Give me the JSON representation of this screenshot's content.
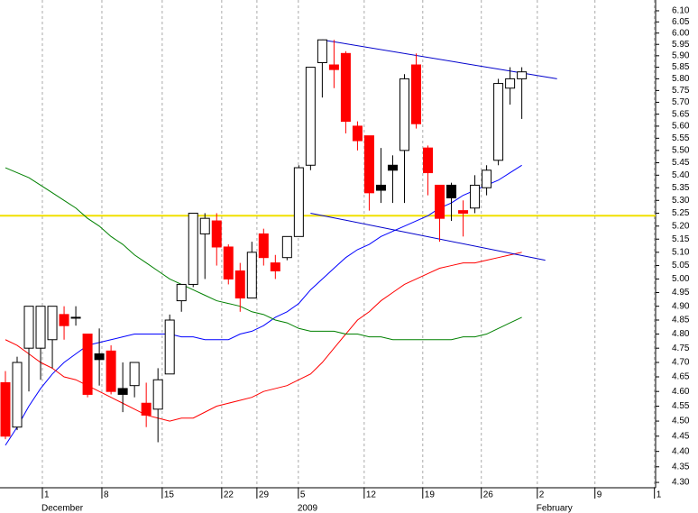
{
  "chart_data": {
    "type": "candlestick",
    "ylog": true,
    "ylim": [
      4.283,
      6.149
    ],
    "xlim": [
      -0.46,
      55.4
    ],
    "grid": true,
    "yticks": [
      {
        "value": 6.1,
        "label": "6.10"
      },
      6.05,
      {
        "value": 6.0,
        "label": "6.00"
      },
      5.95,
      {
        "value": 5.9,
        "label": "5.90"
      },
      5.85,
      {
        "value": 5.8,
        "label": "5.80"
      },
      5.75,
      {
        "value": 5.7,
        "label": "5.70"
      },
      5.65,
      {
        "value": 5.6,
        "label": "5.60"
      },
      5.55,
      {
        "value": 5.5,
        "label": "5.50"
      },
      5.45,
      {
        "value": 5.4,
        "label": "5.40"
      },
      5.35,
      {
        "value": 5.3,
        "label": "5.30"
      },
      5.25,
      {
        "value": 5.2,
        "label": "5.20"
      },
      5.15,
      {
        "value": 5.1,
        "label": "5.10"
      },
      5.05,
      {
        "value": 5.0,
        "label": "5.00"
      },
      4.95,
      {
        "value": 4.9,
        "label": "4.90"
      },
      4.85,
      {
        "value": 4.8,
        "label": "4.80"
      },
      4.75,
      {
        "value": 4.7,
        "label": "4.70"
      },
      4.65,
      {
        "value": 4.6,
        "label": "4.60"
      },
      4.55,
      {
        "value": 4.5,
        "label": "4.50"
      },
      4.45,
      {
        "value": 4.4,
        "label": "4.40"
      },
      4.35,
      {
        "value": 4.3,
        "label": "4.30"
      }
    ],
    "xticks": [
      {
        "value": 3.15,
        "label": "1"
      },
      {
        "value": 8.22,
        "label": "8"
      },
      {
        "value": 13.36,
        "label": "15"
      },
      {
        "value": 18.43,
        "label": "22"
      },
      {
        "value": 21.43,
        "label": "29"
      },
      {
        "value": 24.96,
        "label": "5"
      },
      {
        "value": 30.57,
        "label": "12"
      },
      {
        "value": 35.56,
        "label": "19"
      },
      {
        "value": 40.55,
        "label": "26"
      },
      {
        "value": 45.32,
        "label": "2"
      },
      {
        "value": 50.23,
        "label": "9"
      },
      {
        "value": 55.3,
        "label": "1"
      }
    ],
    "month_labels": [
      {
        "value": 3.15,
        "label": "December"
      },
      {
        "value": 24.96,
        "label": "2009"
      },
      {
        "value": 45.32,
        "label": "February"
      }
    ],
    "x": [
      0,
      1,
      2,
      3,
      4,
      5,
      6,
      7,
      8,
      9,
      10,
      11,
      12,
      13,
      14,
      15,
      16,
      17,
      18,
      19,
      20,
      21,
      22,
      23,
      24,
      25,
      26,
      27,
      28,
      29,
      30,
      31,
      32,
      33,
      34,
      35,
      36,
      37,
      38,
      39,
      40,
      41,
      42,
      43,
      44
    ],
    "open": [
      4.63,
      4.48,
      4.75,
      4.75,
      4.78,
      4.87,
      4.86,
      4.8,
      4.73,
      4.74,
      4.61,
      4.62,
      4.56,
      4.54,
      4.66,
      4.92,
      4.98,
      5.17,
      5.22,
      5.12,
      5.03,
      4.93,
      5.17,
      5.06,
      5.08,
      5.16,
      5.44,
      5.87,
      5.86,
      5.91,
      5.6,
      5.56,
      5.36,
      5.44,
      5.5,
      5.86,
      5.51,
      5.36,
      5.36,
      5.26,
      5.27,
      5.35,
      5.46,
      5.76,
      5.8
    ],
    "high": [
      4.67,
      4.72,
      4.9,
      4.9,
      4.9,
      4.9,
      4.9,
      4.8,
      4.82,
      4.76,
      4.7,
      4.7,
      4.63,
      4.68,
      4.87,
      4.98,
      5.25,
      5.25,
      5.25,
      5.13,
      5.06,
      5.14,
      5.19,
      5.09,
      5.16,
      5.44,
      5.85,
      5.97,
      5.97,
      5.92,
      5.62,
      5.56,
      5.51,
      5.48,
      5.82,
      5.91,
      5.52,
      5.36,
      5.37,
      5.3,
      5.4,
      5.44,
      5.8,
      5.85,
      5.85
    ],
    "low": [
      4.44,
      4.47,
      4.6,
      4.64,
      4.68,
      4.78,
      4.83,
      4.58,
      4.62,
      4.59,
      4.53,
      4.58,
      4.48,
      4.43,
      4.66,
      4.88,
      4.97,
      5.0,
      5.05,
      4.98,
      4.88,
      4.93,
      5.05,
      5.0,
      5.07,
      5.16,
      5.42,
      5.72,
      5.76,
      5.57,
      5.5,
      5.26,
      5.29,
      5.29,
      5.29,
      5.59,
      5.32,
      5.14,
      5.22,
      5.16,
      5.25,
      5.32,
      5.44,
      5.69,
      5.63
    ],
    "close": [
      4.45,
      4.7,
      4.9,
      4.9,
      4.9,
      4.83,
      4.86,
      4.59,
      4.71,
      4.6,
      4.59,
      4.7,
      4.52,
      4.64,
      4.85,
      4.98,
      5.25,
      5.23,
      5.12,
      5.0,
      4.93,
      5.1,
      5.08,
      5.03,
      5.16,
      5.43,
      5.85,
      5.97,
      5.84,
      5.62,
      5.54,
      5.33,
      5.34,
      5.42,
      5.8,
      5.61,
      5.41,
      5.23,
      5.31,
      5.25,
      5.36,
      5.42,
      5.78,
      5.8,
      5.83
    ],
    "candle_colors": [
      "#ff0000",
      "#ffffff",
      "#ffffff",
      "#ffffff",
      "#ffffff",
      "#ff0000",
      "#000000",
      "#ff0000",
      "#000000",
      "#ff0000",
      "#000000",
      "#ffffff",
      "#ff0000",
      "#ffffff",
      "#ffffff",
      "#ffffff",
      "#ffffff",
      "#ffffff",
      "#ff0000",
      "#ff0000",
      "#ff0000",
      "#ffffff",
      "#ff0000",
      "#ff0000",
      "#ffffff",
      "#ffffff",
      "#ffffff",
      "#ffffff",
      "#ff0000",
      "#ff0000",
      "#ff0000",
      "#ff0000",
      "#000000",
      "#000000",
      "#ffffff",
      "#ff0000",
      "#ff0000",
      "#ff0000",
      "#000000",
      "#ff0000",
      "#ffffff",
      "#ffffff",
      "#ffffff",
      "#ffffff",
      "#ffffff"
    ],
    "series": [
      {
        "color": "#0000ff",
        "values": [
          4.42,
          4.48,
          4.55,
          4.61,
          4.66,
          4.7,
          4.73,
          4.76,
          4.77,
          4.78,
          4.79,
          4.8,
          4.8,
          4.8,
          4.8,
          4.79,
          4.79,
          4.78,
          4.78,
          4.78,
          4.8,
          4.81,
          4.83,
          4.86,
          4.88,
          4.91,
          4.96,
          5.0,
          5.04,
          5.08,
          5.11,
          5.13,
          5.16,
          5.18,
          5.2,
          5.22,
          5.24,
          5.27,
          5.29,
          5.32,
          5.34,
          5.36,
          5.38,
          5.41,
          5.44
        ]
      },
      {
        "color": "#ff0000",
        "values": [
          4.78,
          4.76,
          4.73,
          4.7,
          4.68,
          4.65,
          4.64,
          4.62,
          4.6,
          4.58,
          4.56,
          4.54,
          4.52,
          4.51,
          4.5,
          4.51,
          4.51,
          4.53,
          4.55,
          4.56,
          4.57,
          4.58,
          4.6,
          4.61,
          4.62,
          4.64,
          4.66,
          4.7,
          4.75,
          4.8,
          4.85,
          4.88,
          4.92,
          4.95,
          4.98,
          5.0,
          5.02,
          5.04,
          5.05,
          5.06,
          5.06,
          5.07,
          5.08,
          5.09,
          5.1
        ]
      },
      {
        "color": "#008000",
        "values": [
          5.43,
          5.41,
          5.39,
          5.36,
          5.33,
          5.3,
          5.27,
          5.23,
          5.2,
          5.16,
          5.13,
          5.09,
          5.06,
          5.03,
          5.0,
          4.98,
          4.96,
          4.94,
          4.92,
          4.91,
          4.9,
          4.88,
          4.87,
          4.85,
          4.84,
          4.82,
          4.81,
          4.81,
          4.81,
          4.8,
          4.8,
          4.79,
          4.79,
          4.78,
          4.78,
          4.78,
          4.78,
          4.78,
          4.78,
          4.79,
          4.79,
          4.8,
          4.82,
          4.84,
          4.86
        ]
      }
    ],
    "trendlines": [
      {
        "color": "#0000cc",
        "x": [
          27,
          47
        ],
        "values": [
          5.97,
          5.8
        ]
      },
      {
        "color": "#0000cc",
        "x": [
          26,
          46
        ],
        "values": [
          5.25,
          5.07
        ]
      }
    ],
    "hlines": [
      {
        "color": "#f0e000",
        "value": 5.24
      }
    ]
  }
}
